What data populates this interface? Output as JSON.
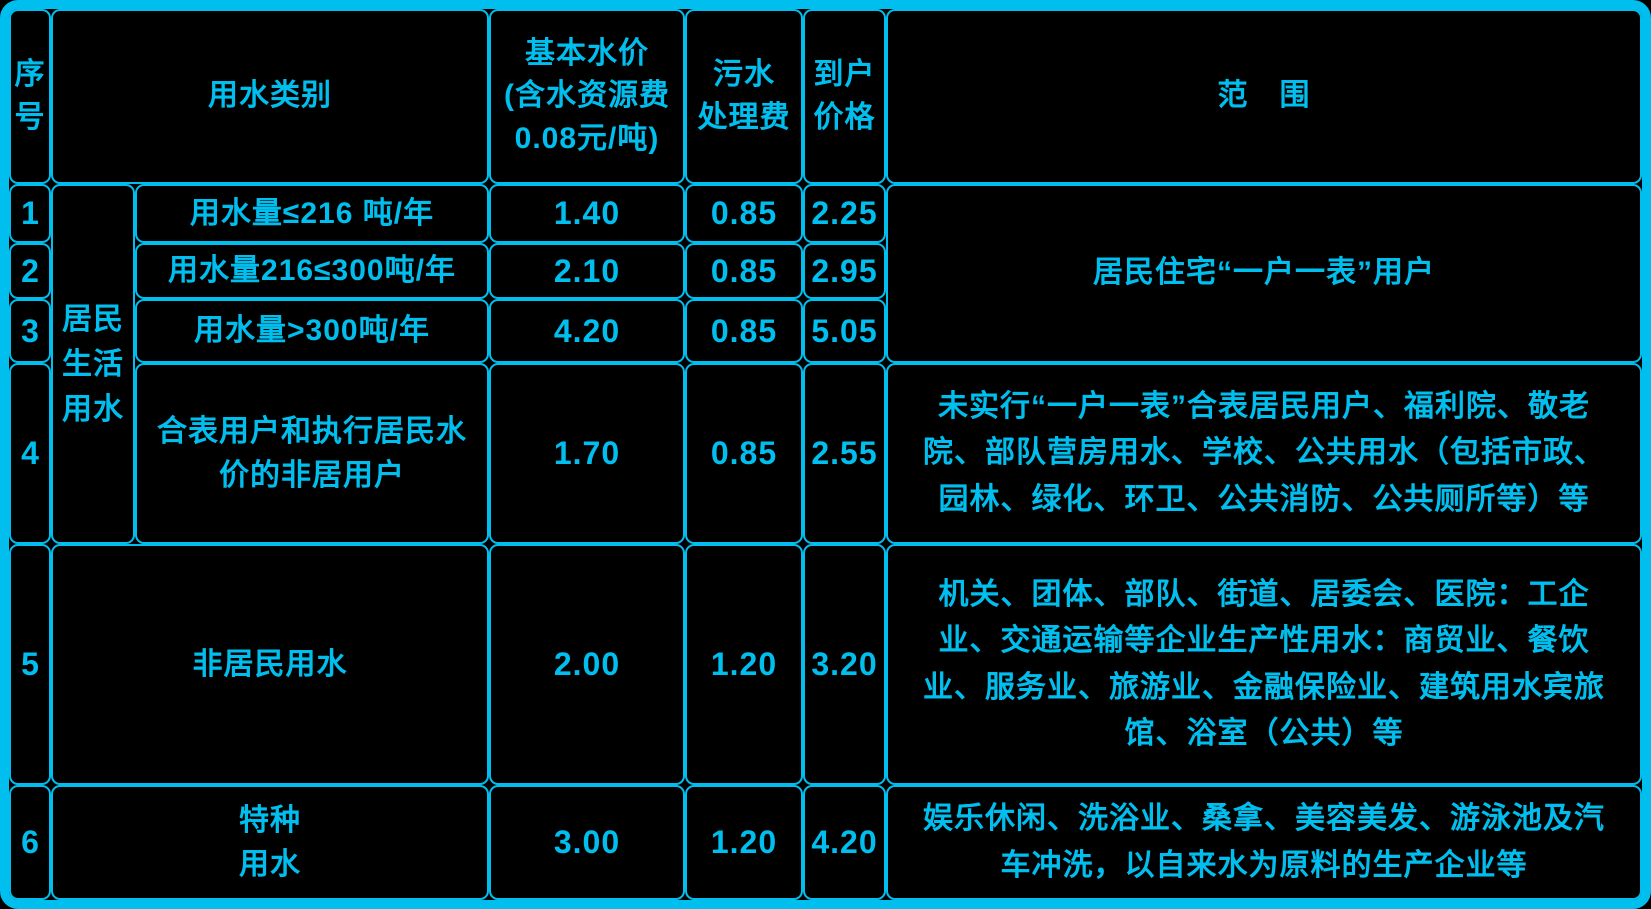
{
  "colors": {
    "accent": "#00bfef",
    "background": "#000000"
  },
  "header": {
    "serial": "序\n号",
    "category": "用水类别",
    "base_price": "基本水价\n(含水资源费\n0.08元/吨)",
    "sewage_fee": "污水\n处理费",
    "household_price": "到户\n价格",
    "scope": "范　围"
  },
  "group_label": "居民\n生活\n用水",
  "merged_scope_rows_1_to_3": "居民住宅“一户一表”用户",
  "rows": [
    {
      "no": "1",
      "category": "用水量≤216 吨/年",
      "base_price": "1.40",
      "sewage_fee": "0.85",
      "household_price": "2.25"
    },
    {
      "no": "2",
      "category": "用水量216≤300吨/年",
      "base_price": "2.10",
      "sewage_fee": "0.85",
      "household_price": "2.95"
    },
    {
      "no": "3",
      "category": "用水量>300吨/年",
      "base_price": "4.20",
      "sewage_fee": "0.85",
      "household_price": "5.05"
    },
    {
      "no": "4",
      "category": "合表用户和执行居民水价的非居用户",
      "base_price": "1.70",
      "sewage_fee": "0.85",
      "household_price": "2.55",
      "scope": "未实行“一户一表”合表居民用户、福利院、敬老院、部队营房用水、学校、公共用水（包括市政、园林、绿化、环卫、公共消防、公共厕所等）等"
    },
    {
      "no": "5",
      "category": "非居民用水",
      "base_price": "2.00",
      "sewage_fee": "1.20",
      "household_price": "3.20",
      "scope": "机关、团体、部队、街道、居委会、医院：工企业、交通运输等企业生产性用水：商贸业、餐饮业、服务业、旅游业、金融保险业、建筑用水宾旅馆、浴室（公共）等"
    },
    {
      "no": "6",
      "category": "特种\n用水",
      "base_price": "3.00",
      "sewage_fee": "1.20",
      "household_price": "4.20",
      "scope": "娱乐休闲、洗浴业、桑拿、美容美发、游泳池及汽车冲洗，以自来水为原料的生产企业等"
    }
  ]
}
